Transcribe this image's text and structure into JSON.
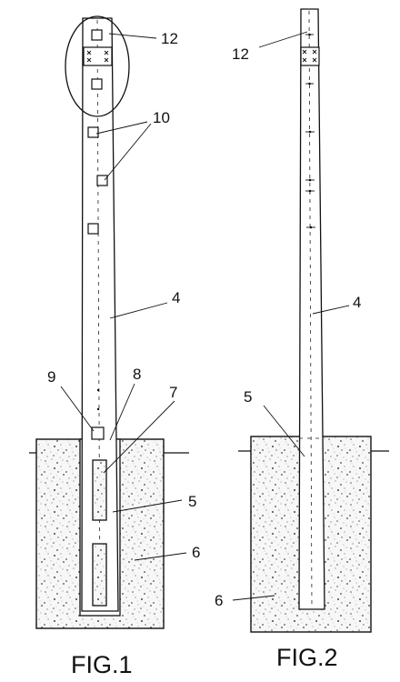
{
  "figures": [
    {
      "caption": "FIG.1",
      "labels": {
        "label_12": "12",
        "label_10": "10",
        "label_4": "4",
        "label_9": "9",
        "label_8": "8",
        "label_7": "7",
        "label_5": "5",
        "label_6": "6"
      }
    },
    {
      "caption": "FIG.2",
      "labels": {
        "label_12": "12",
        "label_4": "4",
        "label_5": "5",
        "label_6": "6"
      }
    }
  ]
}
